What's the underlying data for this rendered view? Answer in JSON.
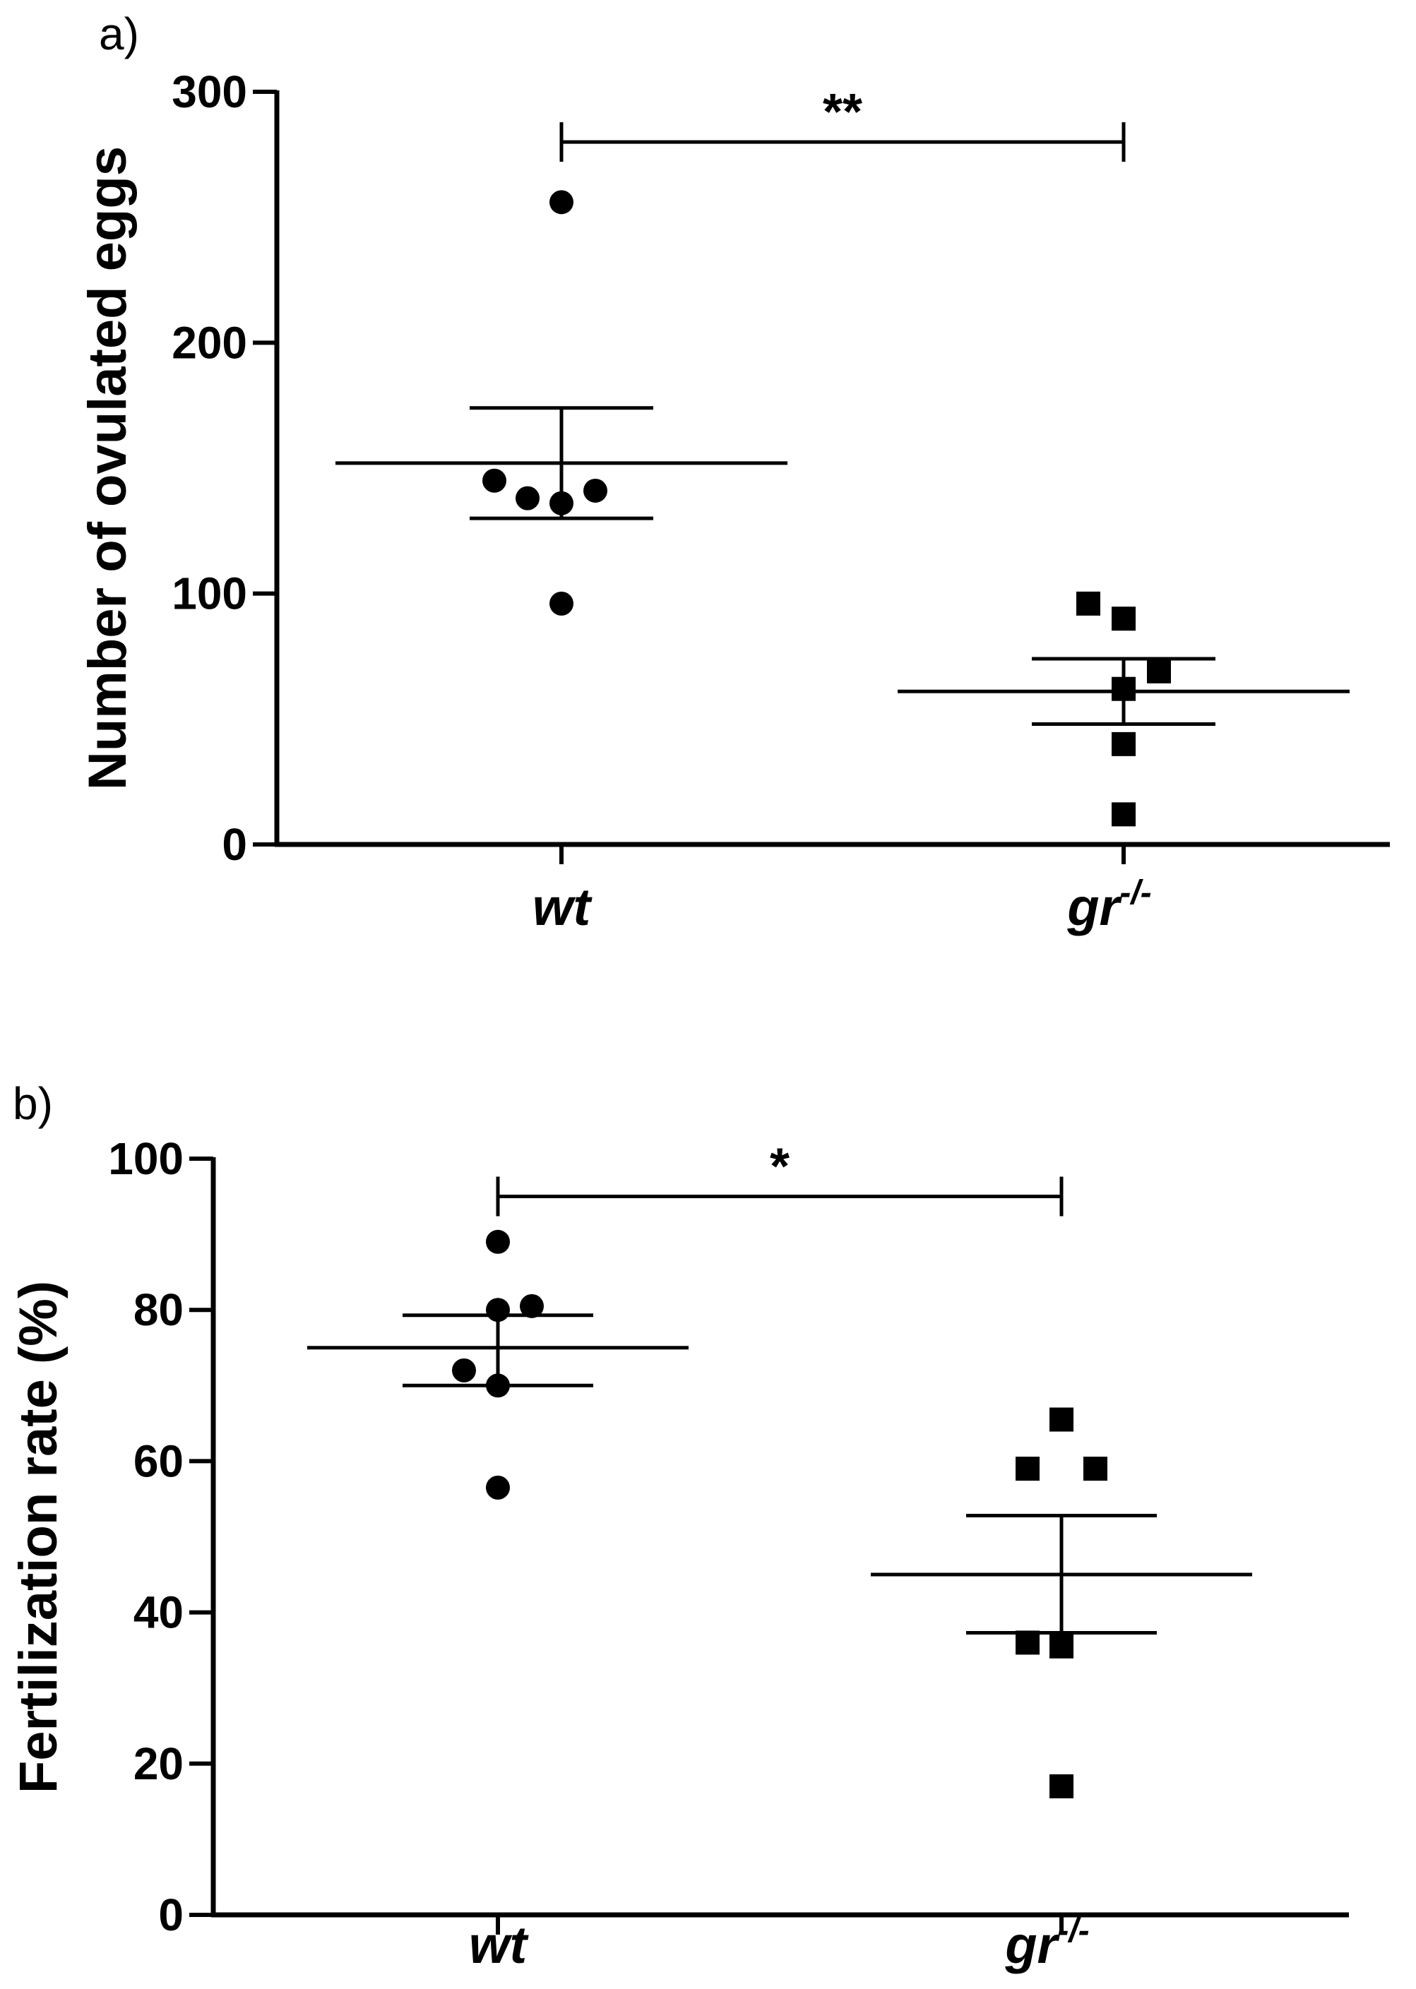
{
  "chart_data": [
    {
      "type": "scatter",
      "panel_label": "a)",
      "ylabel": "Number of ovulated eggs",
      "ylim": [
        0,
        300
      ],
      "yticks": [
        "0",
        "100",
        "200",
        "300"
      ],
      "categories": [
        "wt",
        "gr"
      ],
      "category_superscripts": [
        "",
        "-/-"
      ],
      "grid": false,
      "series": [
        {
          "marker": "circle",
          "values": [
            256,
            145,
            138,
            136,
            141,
            96
          ],
          "mean": 152,
          "sem": [
            130,
            174
          ]
        },
        {
          "marker": "square",
          "values": [
            96,
            90,
            69,
            62,
            40,
            12
          ],
          "mean": 61,
          "sem": [
            48,
            74
          ]
        }
      ],
      "significance": {
        "label": "**",
        "y": 280
      }
    },
    {
      "type": "scatter",
      "panel_label": "b)",
      "ylabel": "Fertilization rate (%)",
      "ylim": [
        0,
        100
      ],
      "yticks": [
        "0",
        "20",
        "40",
        "60",
        "80",
        "100"
      ],
      "categories": [
        "wt",
        "gr"
      ],
      "category_superscripts": [
        "",
        "-/-"
      ],
      "grid": false,
      "series": [
        {
          "marker": "circle",
          "values": [
            89,
            80,
            80.5,
            72,
            70,
            56.5
          ],
          "mean": 75,
          "sem": [
            70,
            79.3
          ]
        },
        {
          "marker": "square",
          "values": [
            65.5,
            59,
            59,
            36,
            35.5,
            17
          ],
          "mean": 45,
          "sem": [
            37.3,
            52.8
          ]
        }
      ],
      "significance": {
        "label": "*",
        "y": 95
      }
    }
  ]
}
